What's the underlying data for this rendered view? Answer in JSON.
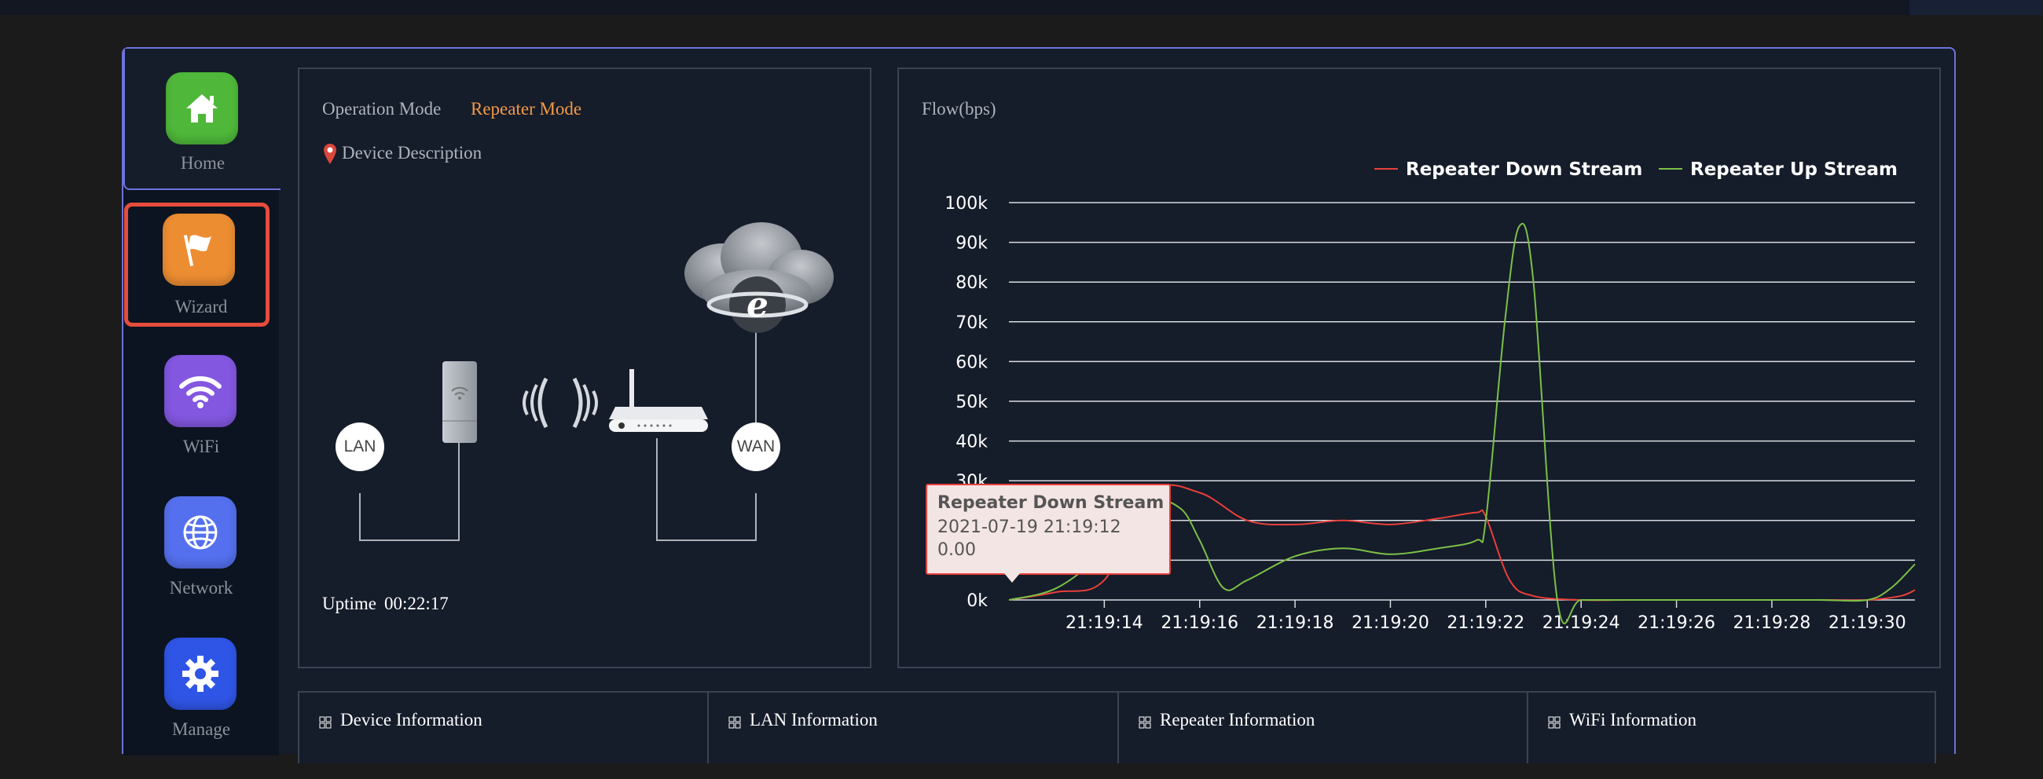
{
  "nav": [
    {
      "label": "Home",
      "icon": "home-icon",
      "color": "#4fb83a"
    },
    {
      "label": "Wizard",
      "icon": "flag-icon",
      "color": "#ec8d32"
    },
    {
      "label": "WiFi",
      "icon": "wifi-icon",
      "color": "#8357e0"
    },
    {
      "label": "Network",
      "icon": "globe-icon",
      "color": "#5570ee"
    },
    {
      "label": "Manage",
      "icon": "gear-icon",
      "color": "#2f55e6"
    }
  ],
  "status": {
    "operation_mode_label": "Operation Mode",
    "operation_mode_value": "Repeater Mode",
    "device_description": "Device Description",
    "lan_label": "LAN",
    "wan_label": "WAN",
    "uptime_label": "Uptime",
    "uptime_value": "00:22:17"
  },
  "chart_title": "Flow(bps)",
  "tooltip": {
    "series": "Repeater Down Stream",
    "time": "2021-07-19 21:19:12",
    "value": "0.00"
  },
  "info_tabs": [
    "Device Information",
    "LAN Information",
    "Repeater Information",
    "WiFi Information"
  ],
  "chart_data": {
    "type": "line",
    "ylim": [
      0,
      100000
    ],
    "yticks": [
      "0k",
      "10k",
      "20k",
      "30k",
      "40k",
      "50k",
      "60k",
      "70k",
      "80k",
      "90k",
      "100k"
    ],
    "xticks": [
      "21:19:14",
      "21:19:16",
      "21:19:18",
      "21:19:20",
      "21:19:22",
      "21:19:24",
      "21:19:26",
      "21:19:28",
      "21:19:30"
    ],
    "xstart": 12,
    "xend": 31,
    "legend_position": "top-right",
    "series": [
      {
        "name": "Repeater Down Stream",
        "color": "#e8403a",
        "x": [
          12,
          13,
          14,
          15,
          16,
          17,
          18,
          19,
          20,
          21,
          21.8,
          22,
          22.5,
          23,
          24,
          25,
          26,
          27,
          28,
          29,
          30,
          30.7,
          31
        ],
        "y": [
          0,
          2000,
          5000,
          27000,
          27000,
          20000,
          19000,
          20000,
          19000,
          20500,
          22000,
          21000,
          5000,
          1000,
          0,
          0,
          0,
          0,
          0,
          0,
          0,
          1000,
          2500
        ]
      },
      {
        "name": "Repeater Up Stream",
        "color": "#7bc046",
        "x": [
          12,
          13,
          14,
          15,
          15.6,
          16,
          16.5,
          17,
          18,
          19,
          20,
          21,
          21.8,
          22,
          22.4,
          22.7,
          23,
          23.5,
          24,
          25,
          26,
          27,
          28,
          29,
          30,
          30.5,
          31
        ],
        "y": [
          0,
          3000,
          12000,
          24000,
          23000,
          15000,
          3000,
          5000,
          11000,
          13000,
          11500,
          13000,
          15000,
          20000,
          70000,
          94000,
          80000,
          0,
          0,
          0,
          0,
          0,
          0,
          0,
          0,
          3000,
          9000
        ]
      }
    ]
  }
}
